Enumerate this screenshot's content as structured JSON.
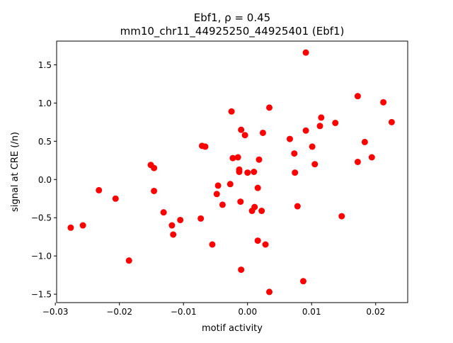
{
  "chart_data": {
    "type": "scatter",
    "title_line1": "Ebf1, ρ = 0.45",
    "title_line2": "mm10_chr11_44925250_44925401 (Ebf1)",
    "xlabel": "motif activity",
    "ylabel": "signal at CRE (/n)",
    "xlim": [
      -0.0298,
      0.025
    ],
    "ylim": [
      -1.61,
      1.81
    ],
    "xticks": [
      -0.03,
      -0.02,
      -0.01,
      0.0,
      0.01,
      0.02
    ],
    "xtick_labels": [
      "−0.03",
      "−0.02",
      "−0.01",
      "0.00",
      "0.01",
      "0.02"
    ],
    "yticks": [
      -1.5,
      -1.0,
      -0.5,
      0.0,
      0.5,
      1.0,
      1.5
    ],
    "ytick_labels": [
      "−1.5",
      "−1.0",
      "−0.5",
      "0.0",
      "0.5",
      "1.0",
      "1.5"
    ],
    "grid": false,
    "marker_color": "#ff0000",
    "points": [
      {
        "x": -0.0276,
        "y": -0.63
      },
      {
        "x": -0.0257,
        "y": -0.6
      },
      {
        "x": -0.0232,
        "y": -0.14
      },
      {
        "x": -0.0206,
        "y": -0.25
      },
      {
        "x": -0.0185,
        "y": -1.06
      },
      {
        "x": -0.0151,
        "y": 0.19
      },
      {
        "x": -0.0146,
        "y": 0.15
      },
      {
        "x": -0.0146,
        "y": -0.15
      },
      {
        "x": -0.0131,
        "y": -0.43
      },
      {
        "x": -0.0118,
        "y": -0.6
      },
      {
        "x": -0.0116,
        "y": -0.72
      },
      {
        "x": -0.0105,
        "y": -0.53
      },
      {
        "x": -0.0073,
        "y": -0.51
      },
      {
        "x": -0.0071,
        "y": 0.44
      },
      {
        "x": -0.0066,
        "y": 0.43
      },
      {
        "x": -0.0055,
        "y": -0.85
      },
      {
        "x": -0.0048,
        "y": -0.19
      },
      {
        "x": -0.0046,
        "y": -0.08
      },
      {
        "x": -0.0039,
        "y": -0.33
      },
      {
        "x": -0.0027,
        "y": -0.06
      },
      {
        "x": -0.0025,
        "y": 0.89
      },
      {
        "x": -0.0023,
        "y": 0.28
      },
      {
        "x": -0.0015,
        "y": 0.29
      },
      {
        "x": -0.0013,
        "y": 0.13
      },
      {
        "x": -0.0013,
        "y": 0.1
      },
      {
        "x": -0.0011,
        "y": -0.29
      },
      {
        "x": -0.001,
        "y": 0.65
      },
      {
        "x": -0.001,
        "y": -1.18
      },
      {
        "x": -0.0004,
        "y": 0.58
      },
      {
        "x": 0.0,
        "y": 0.09
      },
      {
        "x": 0.0007,
        "y": -0.41
      },
      {
        "x": 0.001,
        "y": 0.1
      },
      {
        "x": 0.0011,
        "y": -0.36
      },
      {
        "x": 0.0016,
        "y": -0.8
      },
      {
        "x": 0.0016,
        "y": -0.11
      },
      {
        "x": 0.0018,
        "y": 0.26
      },
      {
        "x": 0.0022,
        "y": -0.41
      },
      {
        "x": 0.0024,
        "y": 0.61
      },
      {
        "x": 0.0028,
        "y": -0.85
      },
      {
        "x": 0.0034,
        "y": 0.94
      },
      {
        "x": 0.0034,
        "y": -1.47
      },
      {
        "x": 0.0066,
        "y": 0.53
      },
      {
        "x": 0.0073,
        "y": 0.34
      },
      {
        "x": 0.0074,
        "y": 0.09
      },
      {
        "x": 0.0078,
        "y": -0.35
      },
      {
        "x": 0.0087,
        "y": -1.33
      },
      {
        "x": 0.0091,
        "y": 1.66
      },
      {
        "x": 0.0091,
        "y": 0.64
      },
      {
        "x": 0.0101,
        "y": 0.43
      },
      {
        "x": 0.0105,
        "y": 0.2
      },
      {
        "x": 0.0113,
        "y": 0.7
      },
      {
        "x": 0.0115,
        "y": 0.81
      },
      {
        "x": 0.0137,
        "y": 0.74
      },
      {
        "x": 0.0147,
        "y": -0.48
      },
      {
        "x": 0.0172,
        "y": 1.09
      },
      {
        "x": 0.0172,
        "y": 0.23
      },
      {
        "x": 0.0183,
        "y": 0.49
      },
      {
        "x": 0.0194,
        "y": 0.29
      },
      {
        "x": 0.0212,
        "y": 1.01
      },
      {
        "x": 0.0225,
        "y": 0.75
      }
    ]
  }
}
